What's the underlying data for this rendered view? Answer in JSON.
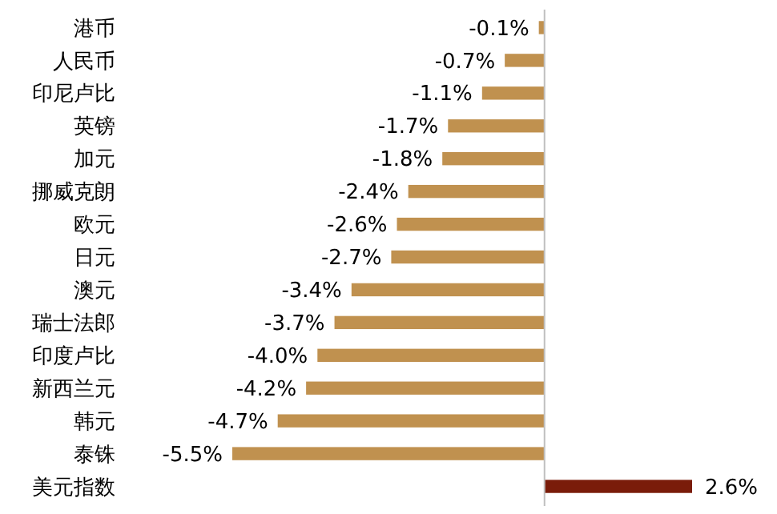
{
  "chart_data": {
    "type": "bar",
    "orientation": "horizontal",
    "categories": [
      "港币",
      "人民币",
      "印尼卢比",
      "英镑",
      "加元",
      "挪威克朗",
      "欧元",
      "日元",
      "澳元",
      "瑞士法郎",
      "印度卢比",
      "新西兰元",
      "韩元",
      "泰铢",
      "美元指数"
    ],
    "values": [
      -0.1,
      -0.7,
      -1.1,
      -1.7,
      -1.8,
      -2.4,
      -2.6,
      -2.7,
      -3.4,
      -3.7,
      -4.0,
      -4.2,
      -4.7,
      -5.5,
      2.6
    ],
    "value_labels": [
      "-0.1%",
      "-0.7%",
      "-1.1%",
      "-1.7%",
      "-1.8%",
      "-2.4%",
      "-2.6%",
      "-2.7%",
      "-3.4%",
      "-3.7%",
      "-4.0%",
      "-4.2%",
      "-4.7%",
      "-5.5%",
      "2.6%"
    ],
    "colors": [
      "#c0914f",
      "#c0914f",
      "#c0914f",
      "#c0914f",
      "#c0914f",
      "#c0914f",
      "#c0914f",
      "#c0914f",
      "#c0914f",
      "#c0914f",
      "#c0914f",
      "#c0914f",
      "#c0914f",
      "#c0914f",
      "#7a1c0a"
    ]
  }
}
